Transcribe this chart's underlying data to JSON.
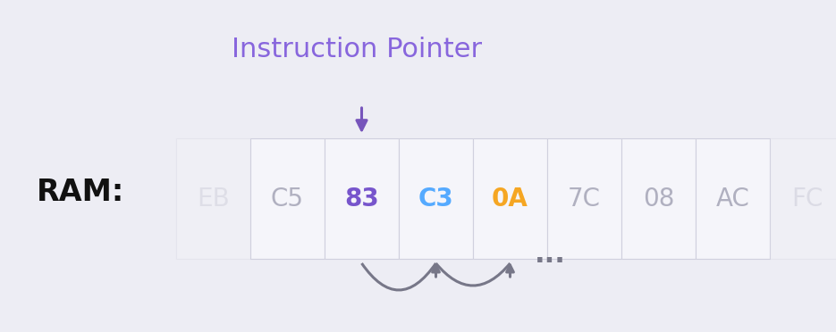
{
  "bg_color": "#ededf4",
  "bytes": [
    "EB",
    "C5",
    "83",
    "C3",
    "0A",
    "7C",
    "08",
    "AC",
    "FC"
  ],
  "byte_colors": [
    "#b8b8c8",
    "#b0b0c0",
    "#7755cc",
    "#55aaff",
    "#f5a623",
    "#b0b0c0",
    "#b0b0c0",
    "#b0b0c0",
    "#b0b0c0"
  ],
  "highlighted_index": 2,
  "n_cells": 9,
  "cell_border_color": "#d0d0de",
  "cell_bg": "#f5f5fa",
  "ram_label": "RAM:",
  "ram_label_fontsize": 24,
  "ram_label_color": "#111111",
  "ip_label": "Instruction Pointer",
  "ip_label_color": "#8866dd",
  "ip_label_fontsize": 22,
  "arrow_color": "#7755bb",
  "arc_color": "#777788",
  "ellipsis_color": "#777788"
}
